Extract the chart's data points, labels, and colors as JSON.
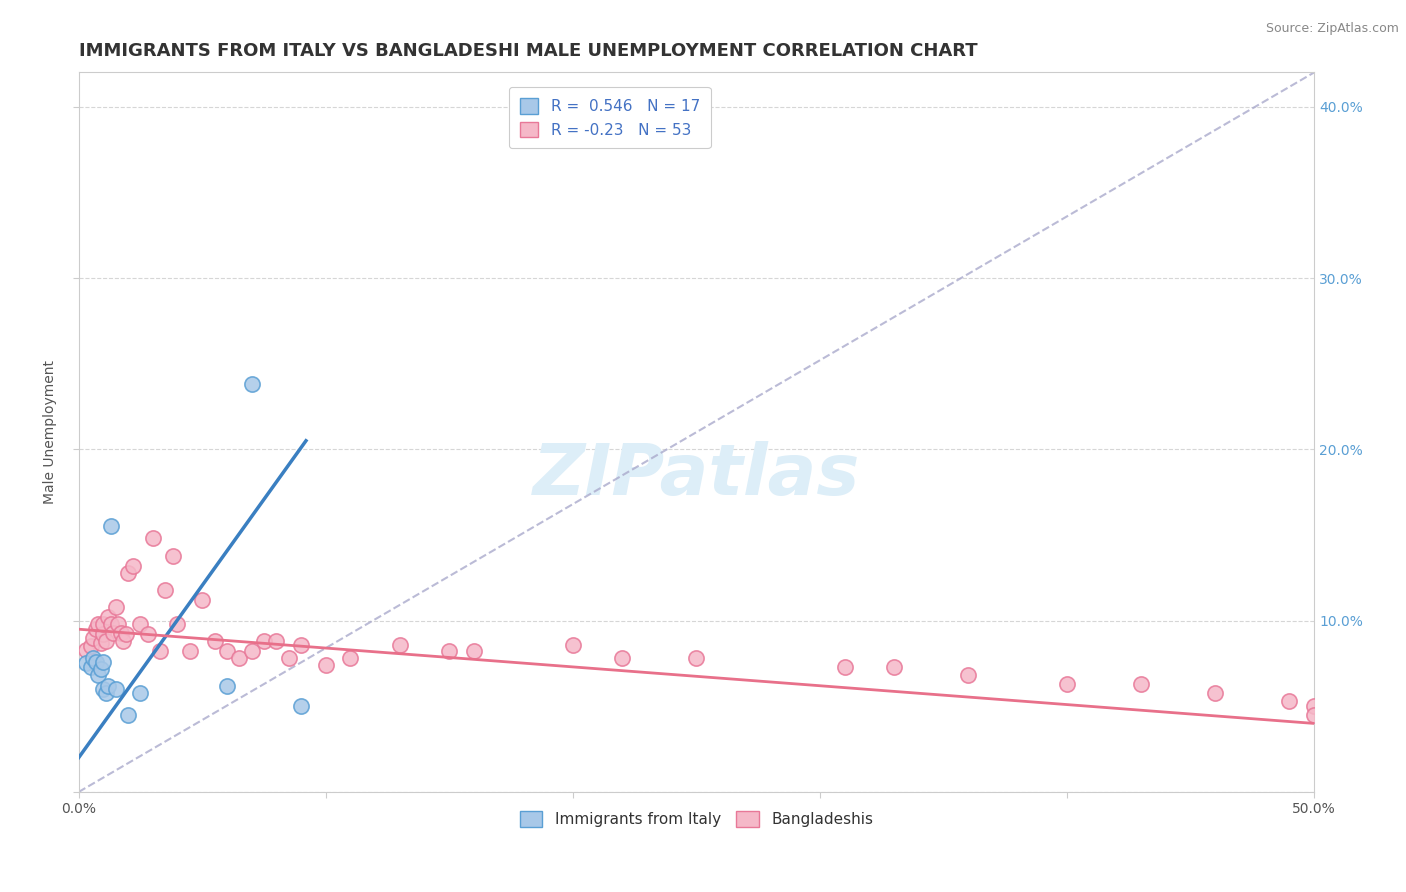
{
  "title": "IMMIGRANTS FROM ITALY VS BANGLADESHI MALE UNEMPLOYMENT CORRELATION CHART",
  "source": "Source: ZipAtlas.com",
  "ylabel": "Male Unemployment",
  "xlim": [
    0.0,
    0.5
  ],
  "ylim": [
    0.0,
    0.42
  ],
  "xticks": [
    0.0,
    0.1,
    0.2,
    0.3,
    0.4,
    0.5
  ],
  "xticklabels": [
    "0.0%",
    "",
    "",
    "",
    "",
    "50.0%"
  ],
  "yticks": [
    0.0,
    0.1,
    0.2,
    0.3,
    0.4
  ],
  "yticklabels": [
    "",
    "10.0%",
    "20.0%",
    "30.0%",
    "40.0%"
  ],
  "blue_R": 0.546,
  "blue_N": 17,
  "pink_R": -0.23,
  "pink_N": 53,
  "blue_scatter_color": "#a8c8e8",
  "blue_edge_color": "#5a9fd4",
  "pink_scatter_color": "#f5b8c8",
  "pink_edge_color": "#e87898",
  "blue_line_color": "#3a7fc1",
  "pink_line_color": "#e8708a",
  "ref_line_color": "#aaaacc",
  "watermark": "ZIPatlas",
  "watermark_color": "#ddeef8",
  "blue_scatter_x": [
    0.003,
    0.005,
    0.006,
    0.007,
    0.008,
    0.009,
    0.01,
    0.01,
    0.011,
    0.012,
    0.013,
    0.015,
    0.02,
    0.025,
    0.06,
    0.07,
    0.09
  ],
  "blue_scatter_y": [
    0.075,
    0.073,
    0.078,
    0.076,
    0.068,
    0.072,
    0.076,
    0.06,
    0.058,
    0.062,
    0.155,
    0.06,
    0.045,
    0.058,
    0.062,
    0.238,
    0.05
  ],
  "blue_trend_x": [
    0.0,
    0.092
  ],
  "blue_trend_y": [
    0.02,
    0.205
  ],
  "pink_scatter_x": [
    0.003,
    0.005,
    0.006,
    0.007,
    0.008,
    0.009,
    0.01,
    0.01,
    0.011,
    0.012,
    0.013,
    0.014,
    0.015,
    0.016,
    0.017,
    0.018,
    0.019,
    0.02,
    0.022,
    0.025,
    0.028,
    0.03,
    0.033,
    0.035,
    0.038,
    0.04,
    0.045,
    0.05,
    0.055,
    0.06,
    0.065,
    0.07,
    0.075,
    0.08,
    0.085,
    0.09,
    0.1,
    0.11,
    0.13,
    0.15,
    0.16,
    0.2,
    0.22,
    0.25,
    0.31,
    0.33,
    0.36,
    0.4,
    0.43,
    0.46,
    0.49,
    0.5,
    0.5
  ],
  "pink_scatter_y": [
    0.083,
    0.085,
    0.09,
    0.095,
    0.098,
    0.087,
    0.092,
    0.098,
    0.088,
    0.102,
    0.098,
    0.093,
    0.108,
    0.098,
    0.093,
    0.088,
    0.092,
    0.128,
    0.132,
    0.098,
    0.092,
    0.148,
    0.082,
    0.118,
    0.138,
    0.098,
    0.082,
    0.112,
    0.088,
    0.082,
    0.078,
    0.082,
    0.088,
    0.088,
    0.078,
    0.086,
    0.074,
    0.078,
    0.086,
    0.082,
    0.082,
    0.086,
    0.078,
    0.078,
    0.073,
    0.073,
    0.068,
    0.063,
    0.063,
    0.058,
    0.053,
    0.05,
    0.045
  ],
  "pink_trend_x": [
    0.0,
    0.5
  ],
  "pink_trend_y": [
    0.095,
    0.04
  ],
  "ref_line_x": [
    0.0,
    0.5
  ],
  "ref_line_y": [
    0.0,
    0.42
  ],
  "legend_labels": [
    "Immigrants from Italy",
    "Bangladeshis"
  ],
  "title_fontsize": 13,
  "axis_label_fontsize": 10,
  "tick_fontsize": 10,
  "watermark_fontsize": 52,
  "background_color": "#ffffff",
  "grid_color": "#cccccc"
}
